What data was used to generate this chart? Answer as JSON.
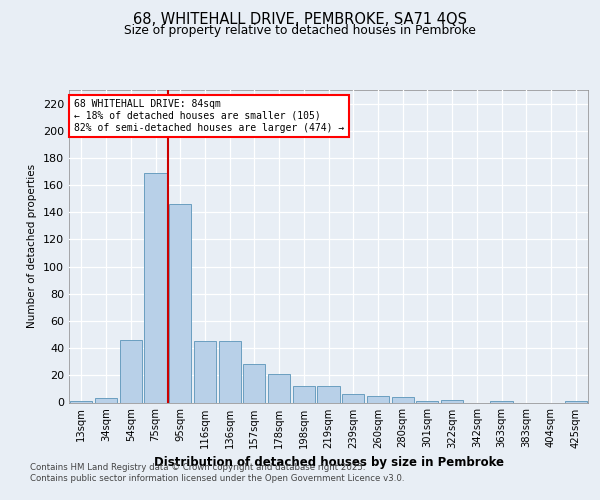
{
  "title_line1": "68, WHITEHALL DRIVE, PEMBROKE, SA71 4QS",
  "title_line2": "Size of property relative to detached houses in Pembroke",
  "xlabel": "Distribution of detached houses by size in Pembroke",
  "ylabel": "Number of detached properties",
  "categories": [
    "13sqm",
    "34sqm",
    "54sqm",
    "75sqm",
    "95sqm",
    "116sqm",
    "136sqm",
    "157sqm",
    "178sqm",
    "198sqm",
    "219sqm",
    "239sqm",
    "260sqm",
    "280sqm",
    "301sqm",
    "322sqm",
    "342sqm",
    "363sqm",
    "383sqm",
    "404sqm",
    "425sqm"
  ],
  "values": [
    1,
    3,
    46,
    169,
    146,
    45,
    45,
    28,
    21,
    12,
    12,
    6,
    5,
    4,
    1,
    2,
    0,
    1,
    0,
    0,
    1
  ],
  "bar_color": "#b8d0e8",
  "bar_edge_color": "#6a9fc0",
  "red_line_x": 3.5,
  "annotation_title": "68 WHITEHALL DRIVE: 84sqm",
  "annotation_line2": "← 18% of detached houses are smaller (105)",
  "annotation_line3": "82% of semi-detached houses are larger (474) →",
  "footer_line1": "Contains HM Land Registry data © Crown copyright and database right 2025.",
  "footer_line2": "Contains public sector information licensed under the Open Government Licence v3.0.",
  "ylim": [
    0,
    230
  ],
  "yticks": [
    0,
    20,
    40,
    60,
    80,
    100,
    120,
    140,
    160,
    180,
    200,
    220
  ],
  "background_color": "#e8eef5",
  "plot_background": "#e8eef5"
}
